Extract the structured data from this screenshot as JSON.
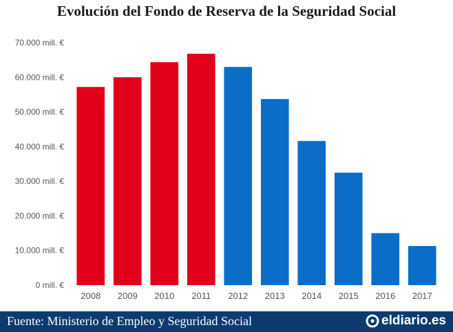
{
  "chart_data": {
    "type": "bar",
    "title": "Evolución del Fondo de Reserva de la Seguridad Social",
    "xlabel": "",
    "ylabel": "",
    "categories": [
      "2008",
      "2009",
      "2010",
      "2011",
      "2012",
      "2013",
      "2014",
      "2015",
      "2016",
      "2017"
    ],
    "values": [
      57223,
      60022,
      64375,
      66815,
      63008,
      53744,
      41634,
      32481,
      15020,
      11300
    ],
    "ylim": [
      0,
      70000
    ],
    "yticks": [
      0,
      10000,
      20000,
      30000,
      40000,
      50000,
      60000,
      70000
    ],
    "ytick_labels": [
      "0 mill. €",
      "10.000 mill. €",
      "20.000 mill. €",
      "30.000 mill. €",
      "40.000 mill. €",
      "50.000 mill. €",
      "60.000 mill. €",
      "70.000 mill. €"
    ],
    "colors": [
      "#e3001b",
      "#e3001b",
      "#e3001b",
      "#e3001b",
      "#0a6dc8",
      "#0a6dc8",
      "#0a6dc8",
      "#0a6dc8",
      "#0a6dc8",
      "#0a6dc8"
    ],
    "grid": false,
    "legend": "none"
  },
  "footer": {
    "source": "Fuente: Ministerio de Empleo y Seguridad Social",
    "logo_text": "eldiario.es",
    "logo_icon": "eldiario-logo-icon",
    "background_color": "#0d3b70"
  }
}
